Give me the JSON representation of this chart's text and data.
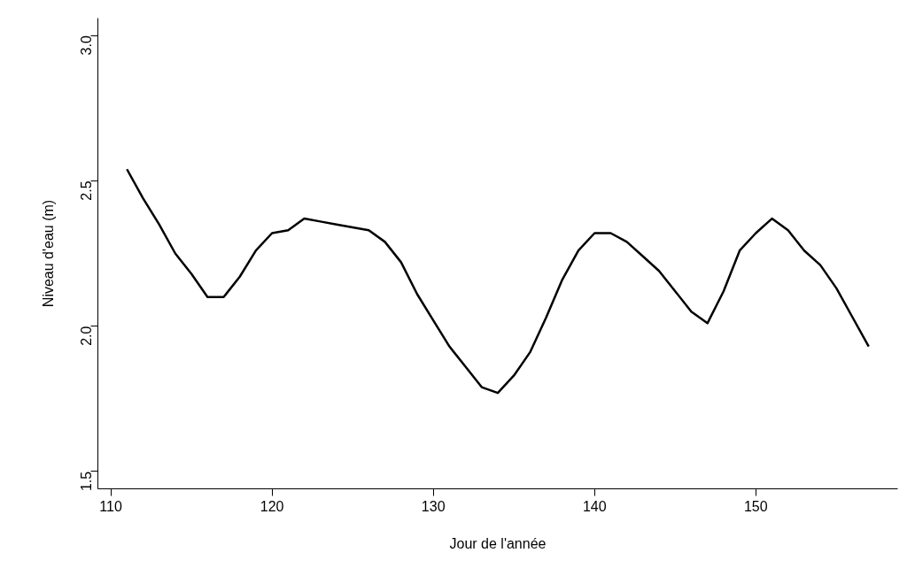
{
  "chart_data": {
    "type": "line",
    "xlabel": "Jour de l'année",
    "ylabel": "Niveau d'eau (m)",
    "x": [
      111,
      112,
      113,
      114,
      115,
      116,
      117,
      118,
      119,
      120,
      121,
      122,
      123,
      124,
      125,
      126,
      127,
      128,
      129,
      130,
      131,
      132,
      133,
      134,
      135,
      136,
      137,
      138,
      139,
      140,
      141,
      142,
      143,
      144,
      145,
      146,
      147,
      148,
      149,
      150,
      151,
      152,
      153,
      154,
      155,
      156,
      157
    ],
    "series": [
      {
        "color": "#000000",
        "values": [
          2.54,
          2.44,
          2.35,
          2.25,
          2.18,
          2.1,
          2.1,
          2.17,
          2.26,
          2.32,
          2.33,
          2.37,
          2.36,
          2.35,
          2.34,
          2.33,
          2.29,
          2.22,
          2.11,
          2.02,
          1.93,
          1.86,
          1.79,
          1.77,
          1.83,
          1.91,
          2.03,
          2.16,
          2.26,
          2.32,
          2.32,
          2.29,
          2.24,
          2.19,
          2.12,
          2.05,
          2.01,
          2.12,
          2.26,
          2.32,
          2.37,
          2.33,
          2.26,
          2.21,
          2.13,
          2.03,
          1.93
        ]
      }
    ],
    "xlim": [
      109.2,
      158.8
    ],
    "ylim": [
      1.44,
      3.06
    ],
    "xticks": [
      110,
      120,
      130,
      140,
      150
    ],
    "yticks": [
      {
        "value": 1.5,
        "label": "1.5"
      },
      {
        "value": 2.0,
        "label": "2.0"
      },
      {
        "value": 2.5,
        "label": "2.5"
      },
      {
        "value": 3.0,
        "label": "3.0"
      }
    ],
    "grid": false,
    "marker": "none",
    "line_style": "solid"
  }
}
